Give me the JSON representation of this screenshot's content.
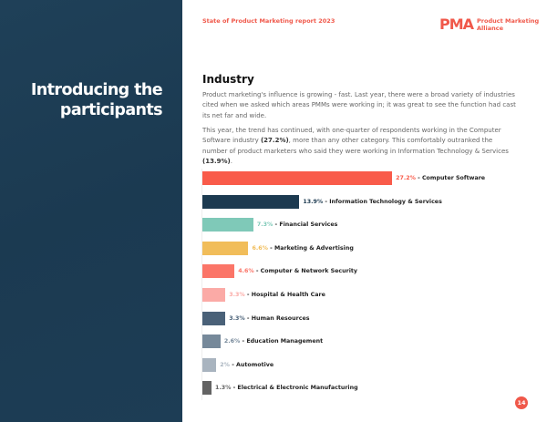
{
  "left_panel": {
    "title": "Introducing the participants"
  },
  "header": {
    "report_title": "State of Product Marketing report 2023",
    "logo_mark": "PMA",
    "logo_text_1": "Product Marketing",
    "logo_text_2": "Alliance"
  },
  "section": {
    "heading": "Industry",
    "paragraph_1": "Product marketing's influence is growing - fast. Last year, there were a broad variety of industries cited when we asked which areas PMMs were working in; it was great to see the function had cast its net far and wide.",
    "paragraph_2_a": "This year, the trend has continued, with one-quarter of respondents working in the Computer Software industry ",
    "paragraph_2_b": "(27.2%)",
    "paragraph_2_c": ", more than any other category. This comfortably outranked the number of product marketers who said they were working in Information Technology & Services ",
    "paragraph_2_d": "(13.9%)",
    "paragraph_2_e": "."
  },
  "chart_data": {
    "type": "bar",
    "orientation": "horizontal",
    "unit": "%",
    "categories": [
      "Computer Software",
      "Information Technology & Services",
      "Financial Services",
      "Marketing & Advertising",
      "Computer & Network Security",
      "Hospital & Health Care",
      "Human Resources",
      "Education Management",
      "Automotive",
      "Electrical & Electronic Manufacturing"
    ],
    "values": [
      27.2,
      13.9,
      7.3,
      6.6,
      4.6,
      3.3,
      3.3,
      2.6,
      2,
      1.3
    ],
    "value_labels": [
      "27.2%",
      "13.9%",
      "7.3%",
      "6.6%",
      "4.6%",
      "3.3%",
      "3.3%",
      "2.6%",
      "2%",
      "1.3%"
    ],
    "colors": [
      "#f95b4a",
      "#1c3a50",
      "#7fc9b8",
      "#f1bd5a",
      "#fb7568",
      "#fbaaa6",
      "#4a6178",
      "#76899a",
      "#a9b4bf",
      "#636363"
    ]
  },
  "page_number": "14"
}
